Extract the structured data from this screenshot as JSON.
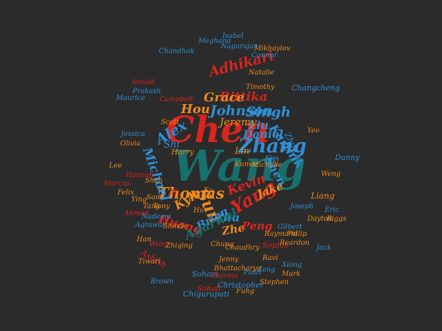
{
  "colors": {
    "background": "#2b2b2b",
    "red": "#d9251d",
    "teal": "#16706c",
    "blue": "#2f8fd6",
    "orange": "#f08a1c"
  },
  "words": [
    {
      "text": "Chen",
      "color": "red"
    },
    {
      "text": "Wang",
      "color": "teal"
    },
    {
      "text": "Zhang",
      "color": "blue"
    },
    {
      "text": "Thomas",
      "color": "orange"
    },
    {
      "text": "Sun",
      "color": "orange"
    },
    {
      "text": "Yang",
      "color": "red"
    },
    {
      "text": "Johnson",
      "color": "blue"
    },
    {
      "text": "Singh",
      "color": "blue"
    },
    {
      "text": "Rittika",
      "color": "red"
    },
    {
      "text": "Grace",
      "color": "orange"
    },
    {
      "text": "Hou",
      "color": "orange"
    },
    {
      "text": "Adhikari",
      "color": "red"
    },
    {
      "text": "Alex",
      "color": "blue"
    },
    {
      "text": "Michael",
      "color": "blue"
    },
    {
      "text": "Kevin",
      "color": "red"
    },
    {
      "text": "Jake",
      "color": "orange"
    },
    {
      "text": "Kyle",
      "color": "orange"
    },
    {
      "text": "Huang",
      "color": "red"
    },
    {
      "text": "Brian",
      "color": "blue"
    },
    {
      "text": "Zhu",
      "color": "blue"
    },
    {
      "text": "Zhe",
      "color": "orange"
    },
    {
      "text": "Peng",
      "color": "red"
    },
    {
      "text": "Agarwal",
      "color": "teal"
    },
    {
      "text": "Daniel",
      "color": "blue"
    },
    {
      "text": "Liu",
      "color": "blue"
    },
    {
      "text": "Jeremy",
      "color": "orange"
    },
    {
      "text": "Karthik",
      "color": "blue"
    },
    {
      "text": "Shen",
      "color": "blue"
    },
    {
      "text": "Shi",
      "color": "blue"
    },
    {
      "text": "Lin",
      "color": "orange"
    },
    {
      "text": "Zhou",
      "color": "blue"
    },
    {
      "text": "Ali",
      "color": "red"
    },
    {
      "text": "Ashish",
      "color": "red"
    },
    {
      "text": "Liang",
      "color": "orange"
    },
    {
      "text": "Christopher",
      "color": "blue"
    },
    {
      "text": "Chigurupati",
      "color": "blue"
    },
    {
      "text": "Sohail",
      "color": "red"
    },
    {
      "text": "Sophie",
      "color": "red"
    },
    {
      "text": "Soham",
      "color": "blue"
    },
    {
      "text": "Changcheng",
      "color": "blue"
    },
    {
      "text": "Harry",
      "color": "orange"
    },
    {
      "text": "Danny",
      "color": "blue"
    },
    {
      "text": "Kumar",
      "color": "orange"
    },
    {
      "text": "Michelle",
      "color": "orange"
    },
    {
      "text": "Meghana",
      "color": "blue"
    },
    {
      "text": "Isabel",
      "color": "blue"
    },
    {
      "text": "Mikhaylov",
      "color": "orange"
    },
    {
      "text": "Chandhok",
      "color": "blue"
    },
    {
      "text": "Connor",
      "color": "blue"
    },
    {
      "text": "Maurice",
      "color": "blue"
    },
    {
      "text": "Timothy",
      "color": "orange"
    },
    {
      "text": "Wong",
      "color": "red"
    },
    {
      "text": "Nagarajan",
      "color": "blue"
    },
    {
      "text": "Agrawal",
      "color": "blue"
    },
    {
      "text": "Raymond",
      "color": "orange"
    },
    {
      "text": "Ahmed",
      "color": "red"
    },
    {
      "text": "Felix",
      "color": "orange"
    },
    {
      "text": "Chung",
      "color": "orange"
    },
    {
      "text": "Han",
      "color": "orange"
    },
    {
      "text": "Yeo",
      "color": "orange"
    },
    {
      "text": "Fung",
      "color": "orange"
    },
    {
      "text": "Xu",
      "color": "orange"
    },
    {
      "text": "Shah",
      "color": "orange"
    },
    {
      "text": "Ying",
      "color": "orange"
    },
    {
      "text": "Lee",
      "color": "orange"
    },
    {
      "text": "Zeng",
      "color": "blue"
    },
    {
      "text": "Xiong",
      "color": "blue"
    },
    {
      "text": "Hu",
      "color": "orange"
    },
    {
      "text": "Nadeem",
      "color": "blue"
    },
    {
      "text": "Tony",
      "color": "orange"
    },
    {
      "text": "Sam",
      "color": "orange"
    },
    {
      "text": "Jenny",
      "color": "orange"
    },
    {
      "text": "Jack",
      "color": "blue"
    },
    {
      "text": "Eric",
      "color": "blue"
    },
    {
      "text": "Reardon",
      "color": "orange"
    },
    {
      "text": "Dayton",
      "color": "orange"
    },
    {
      "text": "Biggs",
      "color": "orange"
    },
    {
      "text": "Scott",
      "color": "orange"
    },
    {
      "text": "Olivia",
      "color": "orange"
    },
    {
      "text": "Tang",
      "color": "orange"
    },
    {
      "text": "Shinde",
      "color": "orange"
    },
    {
      "text": "Gilbert",
      "color": "blue"
    },
    {
      "text": "Patel",
      "color": "blue"
    },
    {
      "text": "Sharma",
      "color": "red"
    },
    {
      "text": "Chaudhry",
      "color": "orange"
    },
    {
      "text": "Ravi",
      "color": "orange"
    },
    {
      "text": "Philip",
      "color": "orange"
    },
    {
      "text": "Bhattacharya",
      "color": "orange"
    },
    {
      "text": "Kim",
      "color": "blue"
    },
    {
      "text": "Stephen",
      "color": "orange"
    },
    {
      "text": "Campbell",
      "color": "red"
    },
    {
      "text": "Mark",
      "color": "orange"
    },
    {
      "text": "Joseph",
      "color": "blue"
    },
    {
      "text": "Hannah",
      "color": "red"
    },
    {
      "text": "Natalie",
      "color": "orange"
    },
    {
      "text": "Arnold",
      "color": "red"
    },
    {
      "text": "Jessica",
      "color": "blue"
    },
    {
      "text": "Tiwari",
      "color": "orange"
    },
    {
      "text": "Brown",
      "color": "blue"
    },
    {
      "text": "Prakash",
      "color": "blue"
    },
    {
      "text": "Marcus",
      "color": "red"
    },
    {
      "text": "Weng",
      "color": "orange"
    },
    {
      "text": "Zhiqing",
      "color": "orange"
    }
  ]
}
